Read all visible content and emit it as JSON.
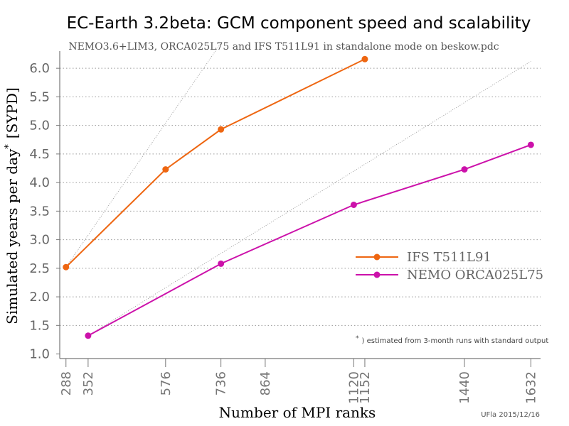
{
  "chart_data": {
    "type": "line",
    "title": "EC-Earth 3.2beta: GCM component speed and scalability",
    "subtitle": "NEMO3.6+LIM3, ORCA025L75 and IFS T511L91 in standalone mode on beskow.pdc",
    "xlabel": "Number of MPI ranks",
    "ylabel": "Simulated years per day",
    "ylabel_sup": "*",
    "ylabel_unit": "[SYPD]",
    "x_ticks": [
      288,
      352,
      576,
      736,
      864,
      1120,
      1152,
      1440,
      1632
    ],
    "y_ticks": [
      "1.0",
      "1.5",
      "2.0",
      "2.5",
      "3.0",
      "3.5",
      "4.0",
      "4.5",
      "5.0",
      "5.5",
      "6.0"
    ],
    "xlim": [
      270,
      1660
    ],
    "ylim": [
      0.92,
      6.3
    ],
    "grid": "horizontal dotted",
    "legend_position": "center-right",
    "series": [
      {
        "name": "IFS T511L91",
        "color": "#ee6611",
        "x": [
          288,
          576,
          736,
          1152
        ],
        "y": [
          2.52,
          4.23,
          4.93,
          6.16
        ]
      },
      {
        "name": "NEMO ORCA025L75",
        "color": "#cc11aa",
        "x": [
          352,
          736,
          1120,
          1440,
          1632
        ],
        "y": [
          1.32,
          2.58,
          3.61,
          4.23,
          4.66
        ]
      }
    ],
    "ideal_scaling": [
      {
        "color": "#888888",
        "x": [
          288,
          736
        ],
        "y": [
          2.52,
          6.44
        ]
      },
      {
        "color": "#888888",
        "x": [
          352,
          1632
        ],
        "y": [
          1.32,
          6.12
        ]
      }
    ],
    "footnote_mark": "*",
    "footnote": ") estimated from 3-month runs with standard output",
    "credit": "UFla 2015/12/16"
  }
}
